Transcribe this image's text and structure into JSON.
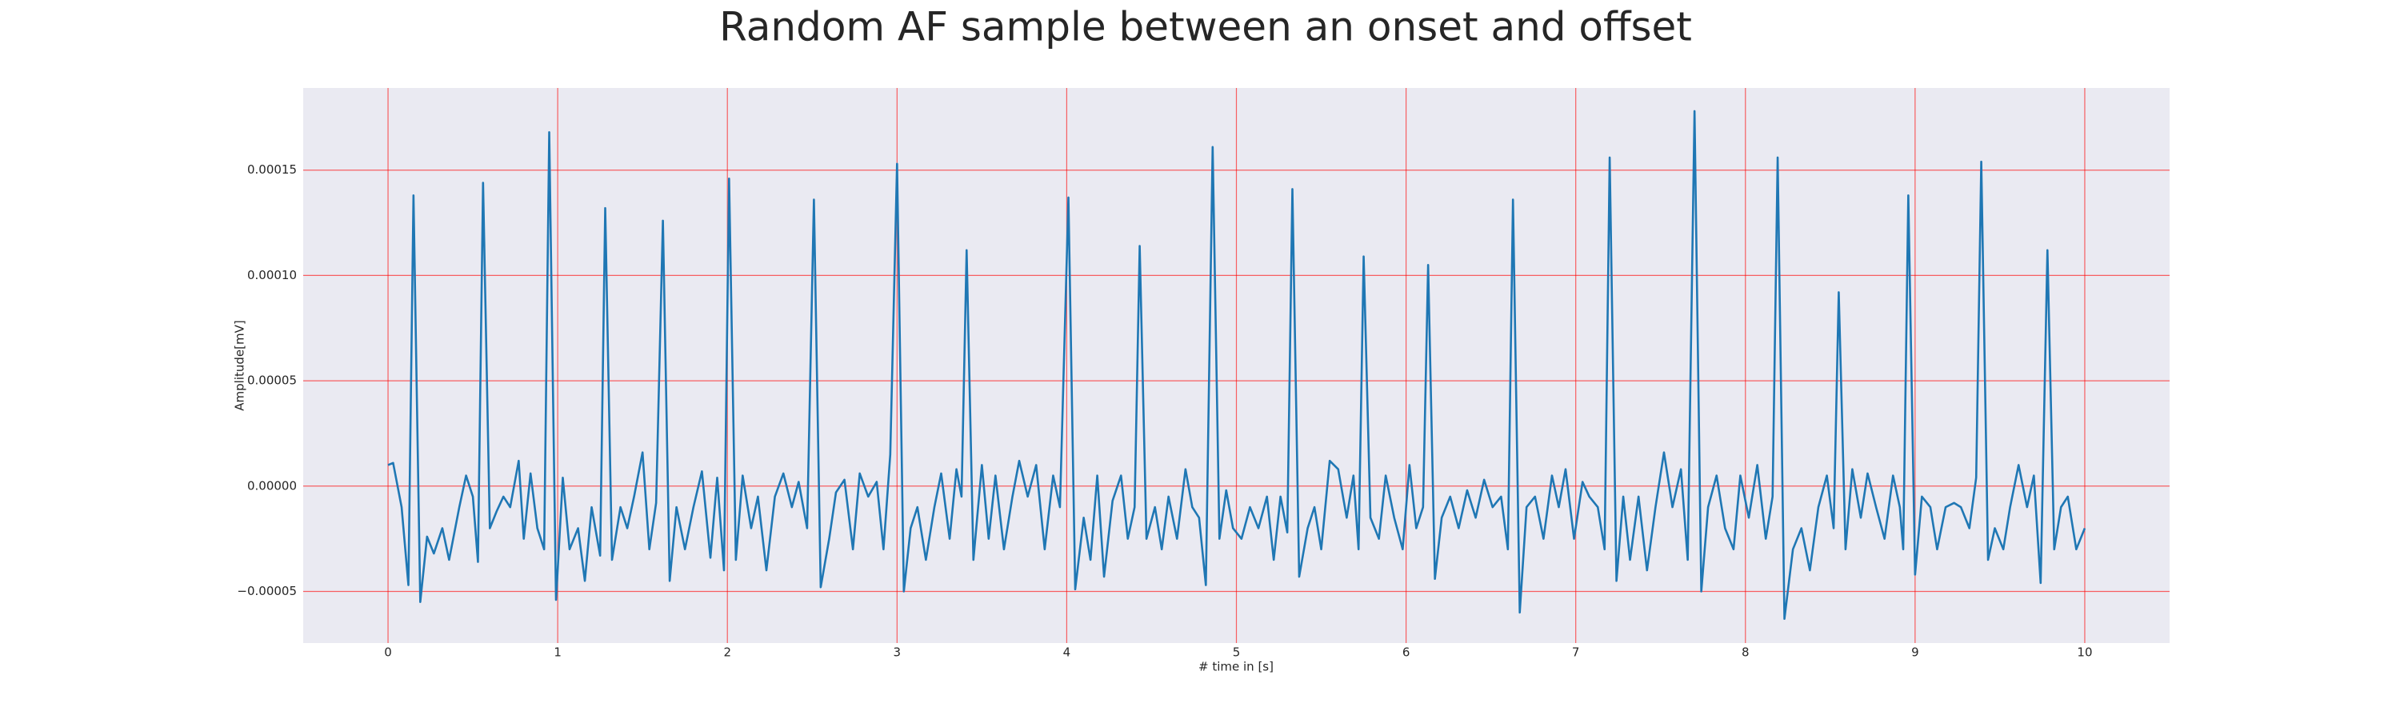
{
  "chart_data": {
    "type": "line",
    "title": "Random AF sample between an onset and offset",
    "x_label": "# time in [s]",
    "y_label": "Amplitude[mV]",
    "grid": true,
    "grid_color": "#ff0000",
    "background": "#eaeaf2",
    "xlim": [
      -0.5,
      10.5
    ],
    "ylim": [
      -7.45e-05,
      0.000189
    ],
    "xticks": [
      0,
      1,
      2,
      3,
      4,
      5,
      6,
      7,
      8,
      9,
      10
    ],
    "yticks": [
      {
        "value": -5e-05,
        "label": "−0.00005"
      },
      {
        "value": 0,
        "label": "0.00000"
      },
      {
        "value": 5e-05,
        "label": "0.00005"
      },
      {
        "value": 0.0001,
        "label": "0.00010"
      },
      {
        "value": 0.00015,
        "label": "0.00015"
      }
    ],
    "x": [
      0.0,
      0.03,
      0.08,
      0.12,
      0.15,
      0.19,
      0.23,
      0.27,
      0.32,
      0.36,
      0.42,
      0.46,
      0.5,
      0.53,
      0.56,
      0.6,
      0.64,
      0.68,
      0.72,
      0.77,
      0.8,
      0.84,
      0.88,
      0.92,
      0.95,
      0.99,
      1.03,
      1.07,
      1.12,
      1.16,
      1.2,
      1.25,
      1.28,
      1.32,
      1.37,
      1.41,
      1.45,
      1.5,
      1.54,
      1.58,
      1.62,
      1.66,
      1.7,
      1.75,
      1.8,
      1.85,
      1.9,
      1.94,
      1.98,
      2.01,
      2.05,
      2.09,
      2.14,
      2.18,
      2.23,
      2.28,
      2.33,
      2.38,
      2.42,
      2.47,
      2.51,
      2.55,
      2.6,
      2.64,
      2.69,
      2.74,
      2.78,
      2.83,
      2.88,
      2.92,
      2.96,
      3.0,
      3.04,
      3.08,
      3.12,
      3.17,
      3.22,
      3.26,
      3.31,
      3.35,
      3.38,
      3.41,
      3.45,
      3.5,
      3.54,
      3.58,
      3.63,
      3.68,
      3.72,
      3.77,
      3.82,
      3.87,
      3.92,
      3.96,
      4.01,
      4.05,
      4.1,
      4.14,
      4.18,
      4.22,
      4.27,
      4.32,
      4.36,
      4.4,
      4.43,
      4.47,
      4.52,
      4.56,
      4.6,
      4.65,
      4.7,
      4.74,
      4.78,
      4.82,
      4.86,
      4.9,
      4.94,
      4.98,
      5.03,
      5.08,
      5.13,
      5.18,
      5.22,
      5.26,
      5.3,
      5.33,
      5.37,
      5.42,
      5.46,
      5.5,
      5.55,
      5.6,
      5.65,
      5.69,
      5.72,
      5.75,
      5.79,
      5.84,
      5.88,
      5.93,
      5.98,
      6.02,
      6.06,
      6.1,
      6.13,
      6.17,
      6.21,
      6.26,
      6.31,
      6.36,
      6.41,
      6.46,
      6.51,
      6.56,
      6.6,
      6.63,
      6.67,
      6.71,
      6.76,
      6.81,
      6.86,
      6.9,
      6.94,
      6.99,
      7.04,
      7.08,
      7.13,
      7.17,
      7.2,
      7.24,
      7.28,
      7.32,
      7.37,
      7.42,
      7.47,
      7.52,
      7.57,
      7.62,
      7.66,
      7.7,
      7.74,
      7.78,
      7.83,
      7.88,
      7.93,
      7.97,
      8.02,
      8.07,
      8.12,
      8.16,
      8.19,
      8.23,
      8.28,
      8.33,
      8.38,
      8.43,
      8.48,
      8.52,
      8.55,
      8.59,
      8.63,
      8.68,
      8.72,
      8.77,
      8.82,
      8.87,
      8.91,
      8.93,
      8.96,
      9.0,
      9.04,
      9.09,
      9.13,
      9.18,
      9.23,
      9.27,
      9.32,
      9.36,
      9.39,
      9.43,
      9.47,
      9.52,
      9.56,
      9.61,
      9.66,
      9.7,
      9.74,
      9.78,
      9.82,
      9.86,
      9.9,
      9.95,
      10.0
    ],
    "series": [
      {
        "color": "#1f77b4",
        "values": [
          1e-05,
          1.1e-05,
          -1e-05,
          -4.7e-05,
          0.000138,
          -5.5e-05,
          -2.4e-05,
          -3.2e-05,
          -2e-05,
          -3.5e-05,
          -1e-05,
          5e-06,
          -5e-06,
          -3.6e-05,
          0.000144,
          -2e-05,
          -1.2e-05,
          -5e-06,
          -1e-05,
          1.2e-05,
          -2.5e-05,
          6e-06,
          -2e-05,
          -3e-05,
          0.000168,
          -5.4e-05,
          4e-06,
          -3e-05,
          -2e-05,
          -4.5e-05,
          -1e-05,
          -3.3e-05,
          0.000132,
          -3.5e-05,
          -1e-05,
          -2e-05,
          -5e-06,
          1.6e-05,
          -3e-05,
          -8e-06,
          0.000126,
          -4.5e-05,
          -1e-05,
          -3e-05,
          -1e-05,
          7e-06,
          -3.4e-05,
          4e-06,
          -4e-05,
          0.000146,
          -3.5e-05,
          5e-06,
          -2e-05,
          -5e-06,
          -4e-05,
          -5e-06,
          6e-06,
          -1e-05,
          2e-06,
          -2e-05,
          0.000136,
          -4.8e-05,
          -2.5e-05,
          -3e-06,
          3e-06,
          -3e-05,
          6e-06,
          -5e-06,
          2e-06,
          -3e-05,
          1.5e-05,
          0.000153,
          -5e-05,
          -2e-05,
          -1e-05,
          -3.5e-05,
          -1e-05,
          6e-06,
          -2.5e-05,
          8e-06,
          -5e-06,
          0.000112,
          -3.5e-05,
          1e-05,
          -2.5e-05,
          5e-06,
          -3e-05,
          -5e-06,
          1.2e-05,
          -5e-06,
          1e-05,
          -3e-05,
          5e-06,
          -1e-05,
          0.000137,
          -4.9e-05,
          -1.5e-05,
          -3.5e-05,
          5e-06,
          -4.3e-05,
          -7e-06,
          5e-06,
          -2.5e-05,
          -1e-05,
          0.000114,
          -2.5e-05,
          -1e-05,
          -3e-05,
          -5e-06,
          -2.5e-05,
          8e-06,
          -1e-05,
          -1.5e-05,
          -4.7e-05,
          0.000161,
          -2.5e-05,
          -2e-06,
          -2e-05,
          -2.5e-05,
          -1e-05,
          -2e-05,
          -5e-06,
          -3.5e-05,
          -5e-06,
          -2.2e-05,
          0.000141,
          -4.3e-05,
          -2e-05,
          -1e-05,
          -3e-05,
          1.2e-05,
          8e-06,
          -1.5e-05,
          5e-06,
          -3e-05,
          0.000109,
          -1.5e-05,
          -2.5e-05,
          5e-06,
          -1.5e-05,
          -3e-05,
          1e-05,
          -2e-05,
          -1e-05,
          0.000105,
          -4.4e-05,
          -1.5e-05,
          -5e-06,
          -2e-05,
          -2e-06,
          -1.5e-05,
          3e-06,
          -1e-05,
          -5e-06,
          -3e-05,
          0.000136,
          -6e-05,
          -1e-05,
          -5e-06,
          -2.5e-05,
          5e-06,
          -1e-05,
          8e-06,
          -2.5e-05,
          2e-06,
          -5e-06,
          -1e-05,
          -3e-05,
          0.000156,
          -4.5e-05,
          -5e-06,
          -3.5e-05,
          -5e-06,
          -4e-05,
          -1e-05,
          1.6e-05,
          -1e-05,
          8e-06,
          -3.5e-05,
          0.000178,
          -5e-05,
          -1e-05,
          5e-06,
          -2e-05,
          -3e-05,
          5e-06,
          -1.5e-05,
          1e-05,
          -2.5e-05,
          -5e-06,
          0.000156,
          -6.3e-05,
          -3e-05,
          -2e-05,
          -4e-05,
          -1e-05,
          5e-06,
          -2e-05,
          9.2e-05,
          -3e-05,
          8e-06,
          -1.5e-05,
          6e-06,
          -1e-05,
          -2.5e-05,
          5e-06,
          -1e-05,
          -3e-05,
          0.000138,
          -4.2e-05,
          -5e-06,
          -1e-05,
          -3e-05,
          -1e-05,
          -8e-06,
          -1e-05,
          -2e-05,
          4e-06,
          0.000154,
          -3.5e-05,
          -2e-05,
          -3e-05,
          -1e-05,
          1e-05,
          -1e-05,
          5e-06,
          -4.6e-05,
          0.000112,
          -3e-05,
          -1e-05,
          -5e-06,
          -3e-05,
          -2e-05
        ]
      }
    ]
  }
}
